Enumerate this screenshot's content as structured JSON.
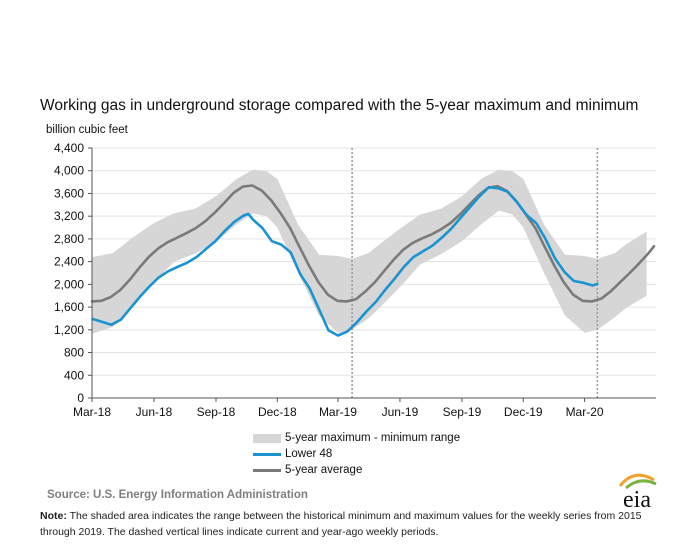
{
  "header": {
    "title": "Working gas in underground  storage compared with the 5-year maximum  and minimum",
    "units": "billion cubic feet"
  },
  "legend": {
    "range_label": "5-year maximum - minimum range",
    "lower48_label": "Lower 48",
    "average_label": "5-year average"
  },
  "footer": {
    "source": "Source:  U.S. Energy Information Administration",
    "note_label": "Note:",
    "note_text": " The shaded area indicates the range between the historical minimum and maximum values for the weekly series from 2015 through 2019. The dashed vertical lines indicate current and year-ago weekly periods.",
    "logo_text": "eia"
  },
  "colors": {
    "range": "#d6d6d6",
    "lower48": "#1a93d0",
    "average": "#7a7a7a",
    "grid": "#e3e3e3",
    "dashed_line": "#9a9a9a",
    "logo_arc_orange": "#f0a22b",
    "logo_arc_green": "#7bb342"
  },
  "chart_data": {
    "type": "line",
    "xlabel": "",
    "ylabel": "billion cubic feet",
    "ylim": [
      0,
      4400
    ],
    "yticks": [
      0,
      400,
      800,
      1200,
      1600,
      2000,
      2400,
      2800,
      3200,
      3600,
      4000,
      4400
    ],
    "ytick_labels": [
      "0",
      "400",
      "800",
      "1,200",
      "1,600",
      "2,000",
      "2,400",
      "2,800",
      "3,200",
      "3,600",
      "4,000",
      "4,400"
    ],
    "xlim": [
      "2018-03-01",
      "2020-06-15"
    ],
    "xticks": [
      "2018-03-01",
      "2018-06-01",
      "2018-09-01",
      "2018-12-01",
      "2019-03-01",
      "2019-06-01",
      "2019-09-01",
      "2019-12-01",
      "2020-03-01"
    ],
    "xtick_labels": [
      "Mar-18",
      "Jun-18",
      "Sep-18",
      "Dec-18",
      "Mar-19",
      "Jun-19",
      "Sep-19",
      "Dec-19",
      "Mar-20"
    ],
    "grid": "horizontal",
    "dashed_verticals": [
      "2019-03-22",
      "2020-03-20"
    ],
    "series": [
      {
        "name": "5-year maximum - minimum range",
        "kind": "band",
        "x": [
          "2018-03-01",
          "2018-04-01",
          "2018-05-01",
          "2018-06-01",
          "2018-07-01",
          "2018-08-01",
          "2018-09-01",
          "2018-10-01",
          "2018-10-26",
          "2018-11-15",
          "2018-12-01",
          "2019-01-01",
          "2019-02-01",
          "2019-03-01",
          "2019-03-22",
          "2019-04-15",
          "2019-05-01",
          "2019-06-01",
          "2019-07-01",
          "2019-08-01",
          "2019-09-01",
          "2019-10-01",
          "2019-10-26",
          "2019-11-15",
          "2019-12-01",
          "2020-01-01",
          "2020-02-01",
          "2020-03-01",
          "2020-03-20",
          "2020-04-15",
          "2020-05-01",
          "2020-06-01"
        ],
        "max": [
          2480,
          2550,
          2830,
          3080,
          3250,
          3330,
          3550,
          3850,
          4020,
          3990,
          3860,
          3050,
          2520,
          2500,
          2450,
          2550,
          2700,
          2980,
          3230,
          3330,
          3550,
          3870,
          4020,
          3990,
          3860,
          3050,
          2520,
          2500,
          2450,
          2550,
          2700,
          2930
        ],
        "min": [
          1130,
          1250,
          1600,
          2040,
          2400,
          2540,
          2750,
          3050,
          3250,
          3200,
          3000,
          2200,
          1450,
          1150,
          1200,
          1400,
          1580,
          1950,
          2350,
          2530,
          2760,
          3070,
          3300,
          3230,
          3000,
          2200,
          1450,
          1150,
          1200,
          1420,
          1580,
          1800
        ]
      },
      {
        "name": "Lower 48",
        "kind": "line",
        "x": [
          "2018-03-02",
          "2018-03-16",
          "2018-03-30",
          "2018-04-13",
          "2018-04-27",
          "2018-05-11",
          "2018-05-25",
          "2018-06-08",
          "2018-06-22",
          "2018-07-06",
          "2018-07-20",
          "2018-08-03",
          "2018-08-17",
          "2018-08-31",
          "2018-09-14",
          "2018-09-28",
          "2018-10-12",
          "2018-10-19",
          "2018-10-26",
          "2018-11-09",
          "2018-11-23",
          "2018-12-07",
          "2018-12-21",
          "2019-01-04",
          "2019-01-18",
          "2019-02-01",
          "2019-02-15",
          "2019-03-01",
          "2019-03-15",
          "2019-03-29",
          "2019-04-12",
          "2019-04-26",
          "2019-05-10",
          "2019-05-24",
          "2019-06-07",
          "2019-06-21",
          "2019-07-05",
          "2019-07-19",
          "2019-08-02",
          "2019-08-16",
          "2019-08-30",
          "2019-09-13",
          "2019-09-27",
          "2019-10-11",
          "2019-10-25",
          "2019-11-08",
          "2019-11-22",
          "2019-12-06",
          "2019-12-20",
          "2020-01-03",
          "2020-01-17",
          "2020-01-31",
          "2020-02-14",
          "2020-02-28",
          "2020-03-13",
          "2020-03-20"
        ],
        "values": [
          1390,
          1340,
          1290,
          1380,
          1580,
          1780,
          1960,
          2120,
          2230,
          2310,
          2380,
          2480,
          2620,
          2760,
          2940,
          3100,
          3210,
          3240,
          3140,
          2990,
          2760,
          2700,
          2560,
          2180,
          1930,
          1560,
          1190,
          1100,
          1170,
          1330,
          1520,
          1690,
          1900,
          2100,
          2310,
          2480,
          2580,
          2680,
          2820,
          2980,
          3170,
          3360,
          3550,
          3710,
          3690,
          3630,
          3440,
          3220,
          3080,
          2800,
          2460,
          2220,
          2060,
          2030,
          1980,
          2010
        ]
      },
      {
        "name": "5-year average",
        "kind": "line",
        "x": [
          "2018-03-01",
          "2018-03-15",
          "2018-03-29",
          "2018-04-12",
          "2018-04-26",
          "2018-05-10",
          "2018-05-24",
          "2018-06-07",
          "2018-06-21",
          "2018-07-05",
          "2018-07-19",
          "2018-08-02",
          "2018-08-16",
          "2018-08-30",
          "2018-09-13",
          "2018-09-27",
          "2018-10-11",
          "2018-10-25",
          "2018-11-08",
          "2018-11-22",
          "2018-12-06",
          "2018-12-20",
          "2019-01-03",
          "2019-01-17",
          "2019-01-31",
          "2019-02-14",
          "2019-02-28",
          "2019-03-14",
          "2019-03-28",
          "2019-04-11",
          "2019-04-25",
          "2019-05-09",
          "2019-05-23",
          "2019-06-06",
          "2019-06-20",
          "2019-07-04",
          "2019-07-18",
          "2019-08-01",
          "2019-08-15",
          "2019-08-29",
          "2019-09-12",
          "2019-09-26",
          "2019-10-10",
          "2019-10-24",
          "2019-11-07",
          "2019-11-21",
          "2019-12-05",
          "2019-12-19",
          "2020-01-02",
          "2020-01-16",
          "2020-01-30",
          "2020-02-13",
          "2020-02-27",
          "2020-03-12",
          "2020-03-26",
          "2020-04-09",
          "2020-04-23",
          "2020-05-07",
          "2020-05-21",
          "2020-06-04",
          "2020-06-12"
        ],
        "values": [
          1700,
          1710,
          1780,
          1900,
          2080,
          2290,
          2480,
          2630,
          2740,
          2820,
          2900,
          2990,
          3110,
          3260,
          3430,
          3610,
          3720,
          3740,
          3650,
          3480,
          3250,
          2990,
          2660,
          2330,
          2040,
          1820,
          1710,
          1700,
          1740,
          1880,
          2040,
          2240,
          2440,
          2610,
          2730,
          2810,
          2880,
          2970,
          3080,
          3230,
          3400,
          3570,
          3700,
          3730,
          3640,
          3460,
          3230,
          2990,
          2660,
          2330,
          2040,
          1820,
          1710,
          1700,
          1750,
          1880,
          2040,
          2200,
          2370,
          2550,
          2670
        ]
      }
    ]
  }
}
